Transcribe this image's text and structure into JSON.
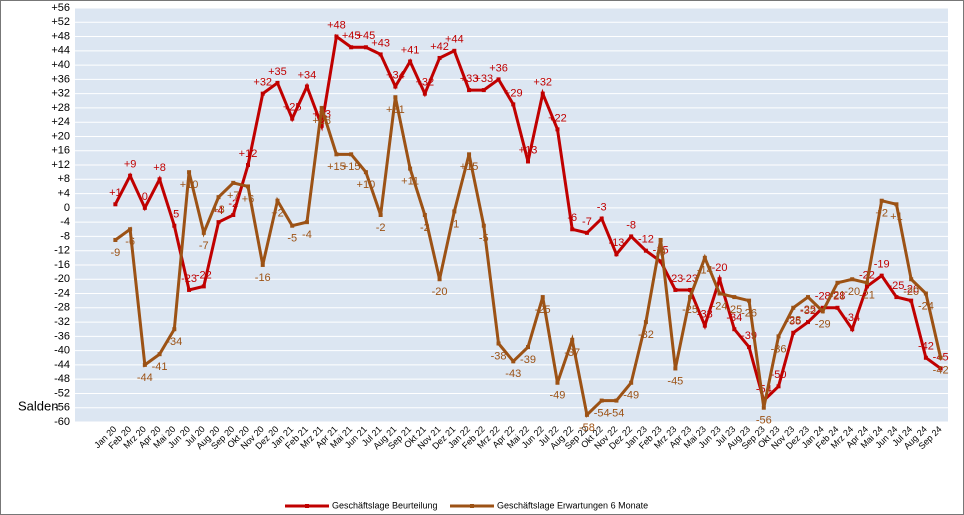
{
  "chart_data": {
    "type": "line",
    "y_label": "Salden",
    "categories": [
      "Jan 20",
      "Feb 20",
      "Mrz 20",
      "Apr 20",
      "Mai 20",
      "Jun 20",
      "Jul 20",
      "Aug 20",
      "Sep 20",
      "Okt 20",
      "Nov 20",
      "Dez 20",
      "Jan 21",
      "Feb 21",
      "Mrz 21",
      "Apr 21",
      "Mai 21",
      "Jun 21",
      "Jul 21",
      "Aug 21",
      "Sep 21",
      "Okt 21",
      "Nov 21",
      "Dez 21",
      "Jan 22",
      "Feb 22",
      "Mrz 22",
      "Apr 22",
      "Mai 22",
      "Jun 22",
      "Jul 22",
      "Aug 22",
      "Sep 22",
      "Okt 22",
      "Nov 22",
      "Dez 22",
      "Jan 23",
      "Feb 23",
      "Mrz 23",
      "Apr 23",
      "Mai 23",
      "Jun 23",
      "Jul 23",
      "Aug 23",
      "Sep 23",
      "Okt 23",
      "Nov 23",
      "Dez 23",
      "Jan 24",
      "Feb 24",
      "Mrz 24",
      "Apr 24",
      "Mai 24",
      "Jun 24",
      "Jul 24",
      "Aug 24",
      "Sep 24"
    ],
    "series": [
      {
        "name": "Geschäftslage Beurteilung",
        "color": "#c00000",
        "values": [
          1,
          9,
          0,
          8,
          -5,
          -23,
          -22,
          -4,
          -2,
          12,
          32,
          35,
          25,
          34,
          23,
          48,
          45,
          45,
          43,
          34,
          41,
          32,
          42,
          44,
          33,
          33,
          36,
          29,
          13,
          32,
          22,
          -6,
          -7,
          -3,
          -13,
          -8,
          -12,
          -15,
          -23,
          -23,
          -33,
          -20,
          -34,
          -39,
          -54,
          -50,
          -35,
          -32,
          -28,
          -28,
          -34,
          -22,
          -19,
          -25,
          -26,
          -42,
          -45
        ],
        "value_labels": [
          "+1",
          "+9",
          "0",
          "+8",
          "-5",
          "-23",
          "-22",
          "-4",
          "-2",
          "+12",
          "+32",
          "+35",
          "+25",
          "+34",
          "+23",
          "+48",
          "+45",
          "+45",
          "+43",
          "+34",
          "+41",
          "+32",
          "+42",
          "+44",
          "+33",
          "+33",
          "+36",
          "+29",
          "+13",
          "+32",
          "+22",
          "-6",
          "-7",
          "-3",
          "-13",
          "-8",
          "-12",
          "-15",
          "-23",
          "-23",
          "-33",
          "-20",
          "-34",
          "-39",
          "-54",
          "-50",
          "-35",
          "-32",
          "-28",
          "-28",
          "-34",
          "-22",
          "-19",
          "-25",
          "-26",
          "-42",
          "-45"
        ]
      },
      {
        "name": "Geschäftslage Erwartungen 6 Monate",
        "color": "#9c5215",
        "values": [
          -9,
          -6,
          -44,
          -41,
          -34,
          10,
          -7,
          3,
          7,
          6,
          -16,
          2,
          -5,
          -4,
          28,
          15,
          15,
          10,
          -2,
          31,
          11,
          -2,
          -20,
          -1,
          15,
          -5,
          -38,
          -43,
          -39,
          -25,
          -49,
          -37,
          -58,
          -54,
          -54,
          -49,
          -32,
          -9,
          -45,
          -25,
          -14,
          -24,
          -25,
          -26,
          -56,
          -36,
          -28,
          -25,
          -29,
          -21,
          -20,
          -21,
          2,
          1,
          -20,
          -24,
          -42
        ],
        "value_labels": [
          "-9",
          "-6",
          "-44",
          "-41",
          "-34",
          "+10",
          "-7",
          "+3",
          "+7",
          "+6",
          "-16",
          "+2",
          "-5",
          "-4",
          "+28",
          "+15",
          "+15",
          "+10",
          "-2",
          "+31",
          "+11",
          "-2",
          "-20",
          "-1",
          "+15",
          "-5",
          "-38",
          "-43",
          "-39",
          "-25",
          "-49",
          "-37",
          "-58",
          "-54",
          "-54",
          "-49",
          "-32",
          "-9",
          "-45",
          "-25",
          "-14",
          "-24",
          "-25",
          "-26",
          "-56",
          "-36",
          "-28",
          "-25",
          "-29",
          "-21",
          "-20",
          "-21",
          "+2",
          "+1",
          "-20",
          "-24",
          "-42"
        ]
      }
    ],
    "ylim": [
      -60,
      56
    ],
    "yticks": [
      {
        "value": 56,
        "label": "+56"
      },
      {
        "value": 52,
        "label": "+52"
      },
      {
        "value": 48,
        "label": "+48"
      },
      {
        "value": 44,
        "label": "+44"
      },
      {
        "value": 40,
        "label": "+40"
      },
      {
        "value": 36,
        "label": "+36"
      },
      {
        "value": 32,
        "label": "+32"
      },
      {
        "value": 28,
        "label": "+28"
      },
      {
        "value": 24,
        "label": "+24"
      },
      {
        "value": 20,
        "label": "+20"
      },
      {
        "value": 16,
        "label": "+16"
      },
      {
        "value": 12,
        "label": "+12"
      },
      {
        "value": 8,
        "label": "+8"
      },
      {
        "value": 4,
        "label": "+4"
      },
      0,
      -4,
      -8,
      -12,
      -16,
      -20,
      -24,
      -28,
      -32,
      -36,
      -40,
      -44,
      -48,
      -52,
      -56,
      -60
    ],
    "grid": true,
    "legend": "bottom"
  }
}
